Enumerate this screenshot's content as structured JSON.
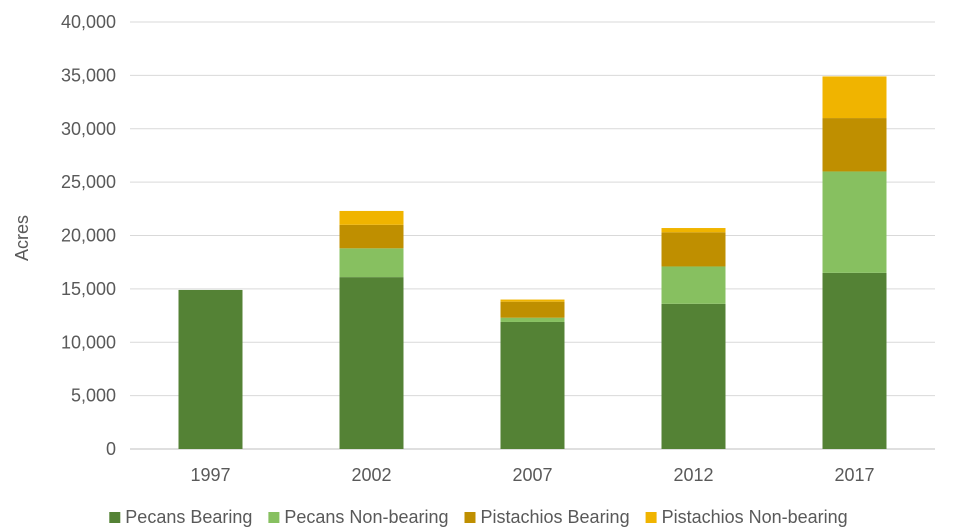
{
  "chart_data": {
    "type": "bar",
    "stacked": true,
    "title": "",
    "xlabel": "",
    "ylabel": "Acres",
    "ylim": [
      0,
      40000
    ],
    "yticks": [
      "0",
      "5,000",
      "10,000",
      "15,000",
      "20,000",
      "25,000",
      "30,000",
      "35,000",
      "40,000"
    ],
    "categories": [
      "1997",
      "2002",
      "2007",
      "2012",
      "2017"
    ],
    "series": [
      {
        "name": "Pecans Bearing",
        "color": "#548235",
        "values": [
          14900,
          16100,
          11900,
          13600,
          16500
        ]
      },
      {
        "name": "Pecans Non-bearing",
        "color": "#87c060",
        "values": [
          0,
          2700,
          400,
          3500,
          9500
        ]
      },
      {
        "name": "Pistachios Bearing",
        "color": "#bf8f00",
        "values": [
          0,
          2200,
          1500,
          3200,
          5000
        ]
      },
      {
        "name": "Pistachios Non-bearing",
        "color": "#f0b400",
        "values": [
          0,
          1300,
          200,
          400,
          3900
        ]
      }
    ],
    "grid": true,
    "legend_position": "bottom"
  }
}
